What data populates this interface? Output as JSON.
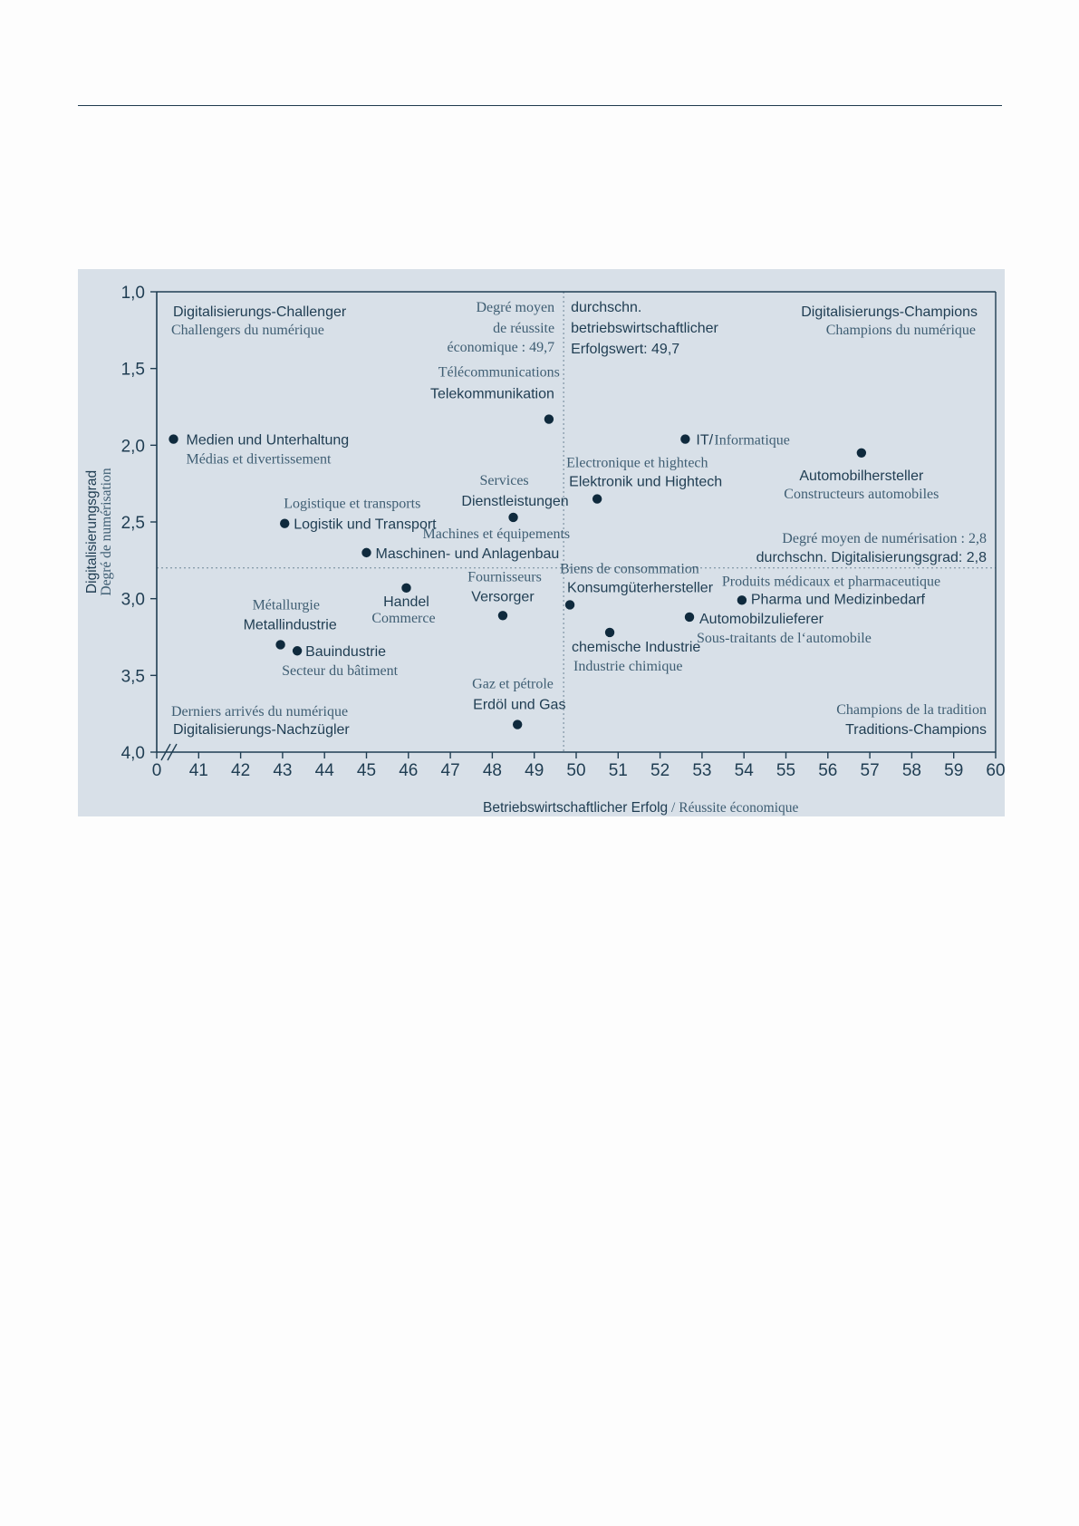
{
  "chart_data": {
    "type": "scatter",
    "title": "",
    "xlabel": "Betriebswirtschaftlicher Erfolg",
    "xlabel_fr": "Réussite économique",
    "xlabel_sep": "/",
    "ylabel": "Digitalisierungsgrad",
    "ylabel_fr": "Degré de numérisation",
    "x_ticks": [
      "0",
      "41",
      "42",
      "43",
      "44",
      "45",
      "46",
      "47",
      "48",
      "49",
      "50",
      "51",
      "52",
      "53",
      "54",
      "55",
      "56",
      "57",
      "58",
      "59",
      "60"
    ],
    "x_tick_values": [
      40,
      41,
      42,
      43,
      44,
      45,
      46,
      47,
      48,
      49,
      50,
      51,
      52,
      53,
      54,
      55,
      56,
      57,
      58,
      59,
      60
    ],
    "y_ticks": [
      "1,0",
      "1,5",
      "2,0",
      "2,5",
      "3,0",
      "3,5",
      "4,0"
    ],
    "y_tick_values": [
      1.0,
      1.5,
      2.0,
      2.5,
      3.0,
      3.5,
      4.0
    ],
    "xlim": [
      40,
      60
    ],
    "ylim": [
      1.0,
      4.0
    ],
    "y_inverted": true,
    "axis_break": "x",
    "grid": false,
    "colors": {
      "panel": "#d8e0e8",
      "axis": "#1f3d52",
      "point": "#0f2a3d",
      "text": "#1f3d52",
      "text_fr": "#3f5e73"
    },
    "reference_lines": [
      {
        "axis": "x",
        "value": 49.7,
        "label_de": [
          "durchschn.",
          "betriebswirtschaftlicher",
          "Erfolgswert: 49,7"
        ],
        "label_fr": [
          "Degré moyen",
          "de réussite",
          "économique : 49,7"
        ]
      },
      {
        "axis": "y",
        "value": 2.8,
        "label_de": [
          "durchschn. Digitalisierungsgrad: 2,8"
        ],
        "label_fr": [
          "Degré moyen de numérisation : 2,8"
        ]
      }
    ],
    "quadrants": [
      {
        "de": "Digitalisierungs-Challenger",
        "fr": "Challengers du numérique"
      },
      {
        "de": "Digitalisierungs-Champions",
        "fr": "Champions du numérique"
      },
      {
        "de": "Digitalisierungs-Nachzügler",
        "fr": "Derniers arrivés du numérique"
      },
      {
        "de": "Traditions-Champions",
        "fr": "Champions de la tradition"
      }
    ],
    "points": [
      {
        "x": 40.4,
        "y": 1.96,
        "de": "Medien und Unterhaltung",
        "fr": "Médias et divertissement"
      },
      {
        "x": 49.35,
        "y": 1.83,
        "de": "Telekommunikation",
        "fr": "Télécommunications"
      },
      {
        "x": 52.6,
        "y": 1.96,
        "de": "IT/",
        "fr": "Informatique"
      },
      {
        "x": 56.8,
        "y": 2.05,
        "de": "Automobilhersteller",
        "fr": "Constructeurs automobiles"
      },
      {
        "x": 43.05,
        "y": 2.51,
        "de": "Logistik und Transport",
        "fr": "Logistique et transports"
      },
      {
        "x": 48.5,
        "y": 2.47,
        "de": "Dienstleistungen",
        "fr": "Services"
      },
      {
        "x": 50.5,
        "y": 2.35,
        "de": "Elektronik und Hightech",
        "fr": "Electronique et hightech"
      },
      {
        "x": 45.0,
        "y": 2.7,
        "de": "Maschinen- und Anlagenbau",
        "fr": "Machines et équipements"
      },
      {
        "x": 45.95,
        "y": 2.93,
        "de": "Handel",
        "fr": "Commerce"
      },
      {
        "x": 48.25,
        "y": 3.11,
        "de": "Versorger",
        "fr": "Fournisseurs"
      },
      {
        "x": 49.85,
        "y": 3.04,
        "de": "Konsumgüterhersteller",
        "fr": "Biens de consommation"
      },
      {
        "x": 53.95,
        "y": 3.01,
        "de": "Pharma und Medizinbedarf",
        "fr": "Produits médicaux et pharmaceutique"
      },
      {
        "x": 52.7,
        "y": 3.12,
        "de": "Automobilzulieferer",
        "fr": "Sous-traitants de l‘automobile"
      },
      {
        "x": 50.8,
        "y": 3.22,
        "de": "chemische Industrie",
        "fr": "Industrie chimique"
      },
      {
        "x": 42.95,
        "y": 3.3,
        "de": "Metallindustrie",
        "fr": "Métallurgie"
      },
      {
        "x": 43.35,
        "y": 3.34,
        "de": "Bauindustrie",
        "fr": "Secteur du bâtiment"
      },
      {
        "x": 48.6,
        "y": 3.82,
        "de": "Erdöl und Gas",
        "fr": "Gaz et pétrole"
      }
    ]
  }
}
